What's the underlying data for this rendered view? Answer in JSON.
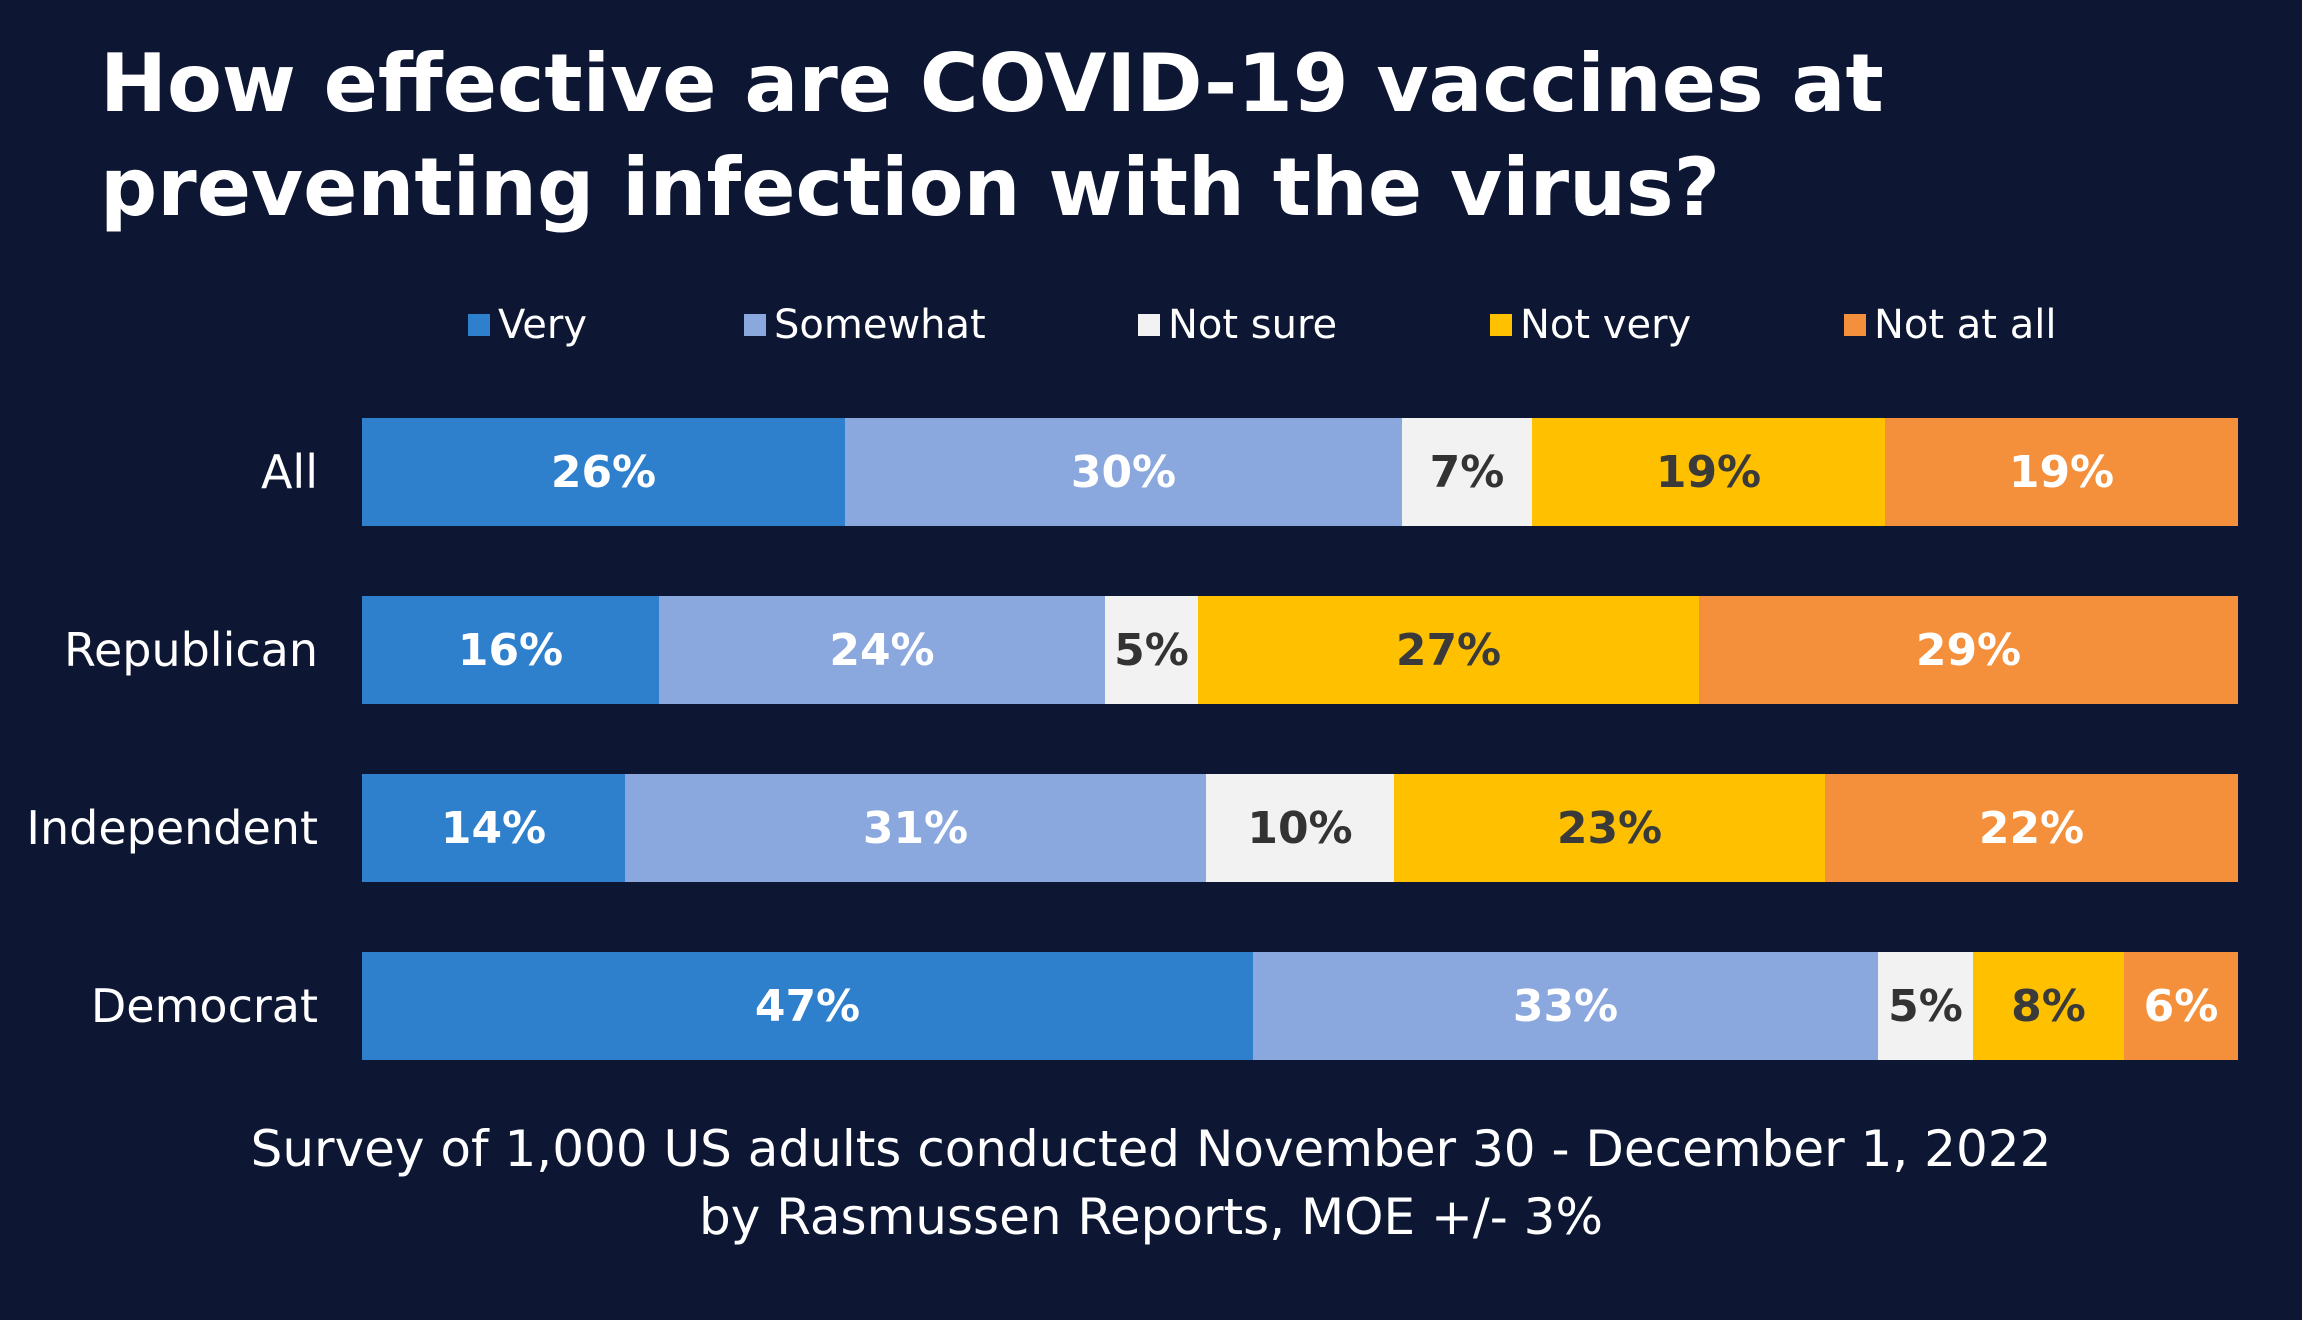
{
  "chart_data": {
    "type": "bar",
    "orientation": "horizontal",
    "stacked": true,
    "title": "How effective are COVID-19 vaccines at preventing infection with the virus?",
    "categories": [
      "All",
      "Republican",
      "Independent",
      "Democrat"
    ],
    "series": [
      {
        "name": "Very",
        "color": "#2e7fcc",
        "values": [
          26,
          16,
          14,
          47
        ],
        "label_color": "#ffffff"
      },
      {
        "name": "Somewhat",
        "color": "#8ba8de",
        "values": [
          30,
          24,
          31,
          33
        ],
        "label_color": "#ffffff"
      },
      {
        "name": "Not sure",
        "color": "#f2f2f2",
        "values": [
          7,
          5,
          10,
          5
        ],
        "label_color": "#333333"
      },
      {
        "name": "Not very",
        "color": "#ffc000",
        "values": [
          19,
          27,
          23,
          8
        ],
        "label_color": "#3a3a3a"
      },
      {
        "name": "Not at all",
        "color": "#f4903b",
        "values": [
          19,
          29,
          22,
          6
        ],
        "label_color": "#ffffff"
      }
    ],
    "value_suffix": "%",
    "legend_position": "top",
    "xlabel": "",
    "ylabel": "",
    "grid": false
  },
  "footer": {
    "line1": "Survey of 1,000 US adults conducted November 30 - December 1, 2022",
    "line2": "by Rasmussen Reports, MOE +/- 3%"
  }
}
